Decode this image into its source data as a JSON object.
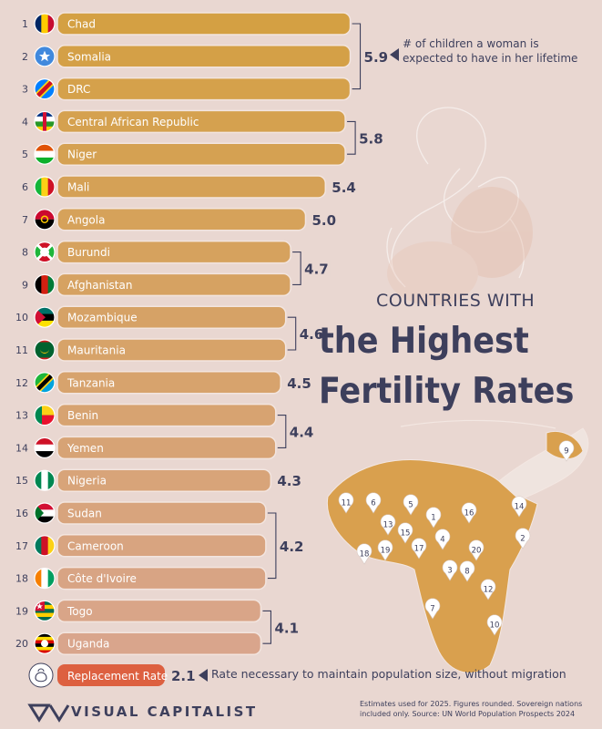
{
  "title": {
    "line1": "COUNTRIES WITH",
    "line2": "the Highest",
    "line3": "Fertility Rates"
  },
  "annotation": "# of children a woman is expected to have in her lifetime",
  "replacement": {
    "label": "Replacement Rate",
    "value": "2.1",
    "note": "Rate necessary to maintain population size, without migration"
  },
  "footer_note": "Estimates used for 2025. Figures rounded. Sovereign nations included only. Source: UN World Population Prospects 2024",
  "brand": "VISUAL CAPITALIST",
  "colors": {
    "background": "#e9d7d1",
    "bar_top": "#d4a043",
    "bar_bottom": "#d9a58c",
    "replacement": "#dd6040",
    "text": "#3d3f5c",
    "map_highlight": "#d9a04e",
    "map_other": "#efe4df"
  },
  "chart_data": {
    "type": "bar",
    "orientation": "horizontal",
    "categories": [
      "Chad",
      "Somalia",
      "DRC",
      "Central African Republic",
      "Niger",
      "Mali",
      "Angola",
      "Burundi",
      "Afghanistan",
      "Mozambique",
      "Mauritania",
      "Tanzania",
      "Benin",
      "Yemen",
      "Nigeria",
      "Sudan",
      "Cameroon",
      "Côte d'Ivoire",
      "Togo",
      "Uganda"
    ],
    "ranks": [
      1,
      2,
      3,
      4,
      5,
      6,
      7,
      8,
      9,
      10,
      11,
      12,
      13,
      14,
      15,
      16,
      17,
      18,
      19,
      20
    ],
    "values": [
      5.9,
      5.9,
      5.9,
      5.8,
      5.8,
      5.4,
      5.0,
      4.7,
      4.7,
      4.6,
      4.6,
      4.5,
      4.4,
      4.4,
      4.3,
      4.2,
      4.2,
      4.2,
      4.1,
      4.1
    ],
    "value_groups": [
      {
        "label": "5.9",
        "value": 5.9,
        "from": 0,
        "to": 2
      },
      {
        "label": "5.8",
        "value": 5.8,
        "from": 3,
        "to": 4
      },
      {
        "label": "5.4",
        "value": 5.4,
        "from": 5,
        "to": 5
      },
      {
        "label": "5.0",
        "value": 5.0,
        "from": 6,
        "to": 6
      },
      {
        "label": "4.7",
        "value": 4.7,
        "from": 7,
        "to": 8
      },
      {
        "label": "4.6",
        "value": 4.6,
        "from": 9,
        "to": 10
      },
      {
        "label": "4.5",
        "value": 4.5,
        "from": 11,
        "to": 11
      },
      {
        "label": "4.4",
        "value": 4.4,
        "from": 12,
        "to": 13
      },
      {
        "label": "4.3",
        "value": 4.3,
        "from": 14,
        "to": 14
      },
      {
        "label": "4.2",
        "value": 4.2,
        "from": 15,
        "to": 17
      },
      {
        "label": "4.1",
        "value": 4.1,
        "from": 18,
        "to": 19
      }
    ],
    "flags": [
      {
        "type": "v3",
        "colors": [
          "#002664",
          "#fecb00",
          "#c60c30"
        ]
      },
      {
        "type": "star",
        "colors": [
          "#4189dd",
          "#ffffff"
        ]
      },
      {
        "type": "diag",
        "colors": [
          "#007fff",
          "#f7d618",
          "#ce1021"
        ]
      },
      {
        "type": "h4",
        "colors": [
          "#003082",
          "#ffffff",
          "#289728",
          "#ffce00",
          "#d21034"
        ]
      },
      {
        "type": "h3",
        "colors": [
          "#e05206",
          "#ffffff",
          "#0db02b"
        ]
      },
      {
        "type": "v3",
        "colors": [
          "#14b53a",
          "#fcd116",
          "#ce1126"
        ]
      },
      {
        "type": "h2",
        "colors": [
          "#cc092f",
          "#000000",
          "#ffcb00"
        ]
      },
      {
        "type": "x",
        "colors": [
          "#ce1126",
          "#1eb53a",
          "#ffffff"
        ]
      },
      {
        "type": "v3",
        "colors": [
          "#000000",
          "#d32011",
          "#007a36"
        ]
      },
      {
        "type": "h3",
        "colors": [
          "#007168",
          "#000000",
          "#fce100",
          "#d21034"
        ]
      },
      {
        "type": "crescent",
        "colors": [
          "#00622f",
          "#ffc400",
          "#d01c1f"
        ]
      },
      {
        "type": "diag",
        "colors": [
          "#1eb53a",
          "#000000",
          "#00a3dd",
          "#fcd116"
        ]
      },
      {
        "type": "benin",
        "colors": [
          "#008751",
          "#fcd116",
          "#e8112d"
        ]
      },
      {
        "type": "h3",
        "colors": [
          "#ce1126",
          "#ffffff",
          "#000000"
        ]
      },
      {
        "type": "v3",
        "colors": [
          "#008751",
          "#ffffff",
          "#008751"
        ]
      },
      {
        "type": "sudan",
        "colors": [
          "#d21034",
          "#ffffff",
          "#000000",
          "#007229"
        ]
      },
      {
        "type": "v3",
        "colors": [
          "#007a5e",
          "#ce1126",
          "#fcd116"
        ]
      },
      {
        "type": "v3",
        "colors": [
          "#f77f00",
          "#ffffff",
          "#009e60"
        ]
      },
      {
        "type": "togo",
        "colors": [
          "#006a4e",
          "#ffce00",
          "#d21034"
        ]
      },
      {
        "type": "h6",
        "colors": [
          "#000000",
          "#fcdc04",
          "#d90000"
        ]
      }
    ],
    "map_labels": [
      {
        "n": "1",
        "x": 476,
        "y": 567
      },
      {
        "n": "2",
        "x": 574,
        "y": 590
      },
      {
        "n": "3",
        "x": 494,
        "y": 625
      },
      {
        "n": "4",
        "x": 486,
        "y": 591
      },
      {
        "n": "5",
        "x": 451,
        "y": 553
      },
      {
        "n": "6",
        "x": 410,
        "y": 551
      },
      {
        "n": "7",
        "x": 475,
        "y": 667
      },
      {
        "n": "8",
        "x": 513,
        "y": 626
      },
      {
        "n": "9",
        "x": 622,
        "y": 494
      },
      {
        "n": "10",
        "x": 543,
        "y": 685
      },
      {
        "n": "11",
        "x": 380,
        "y": 551
      },
      {
        "n": "12",
        "x": 536,
        "y": 646
      },
      {
        "n": "13",
        "x": 426,
        "y": 575
      },
      {
        "n": "14",
        "x": 570,
        "y": 555
      },
      {
        "n": "15",
        "x": 445,
        "y": 584
      },
      {
        "n": "16",
        "x": 515,
        "y": 562
      },
      {
        "n": "17",
        "x": 460,
        "y": 601
      },
      {
        "n": "18",
        "x": 400,
        "y": 607
      },
      {
        "n": "19",
        "x": 423,
        "y": 603
      },
      {
        "n": "20",
        "x": 523,
        "y": 603
      }
    ]
  }
}
